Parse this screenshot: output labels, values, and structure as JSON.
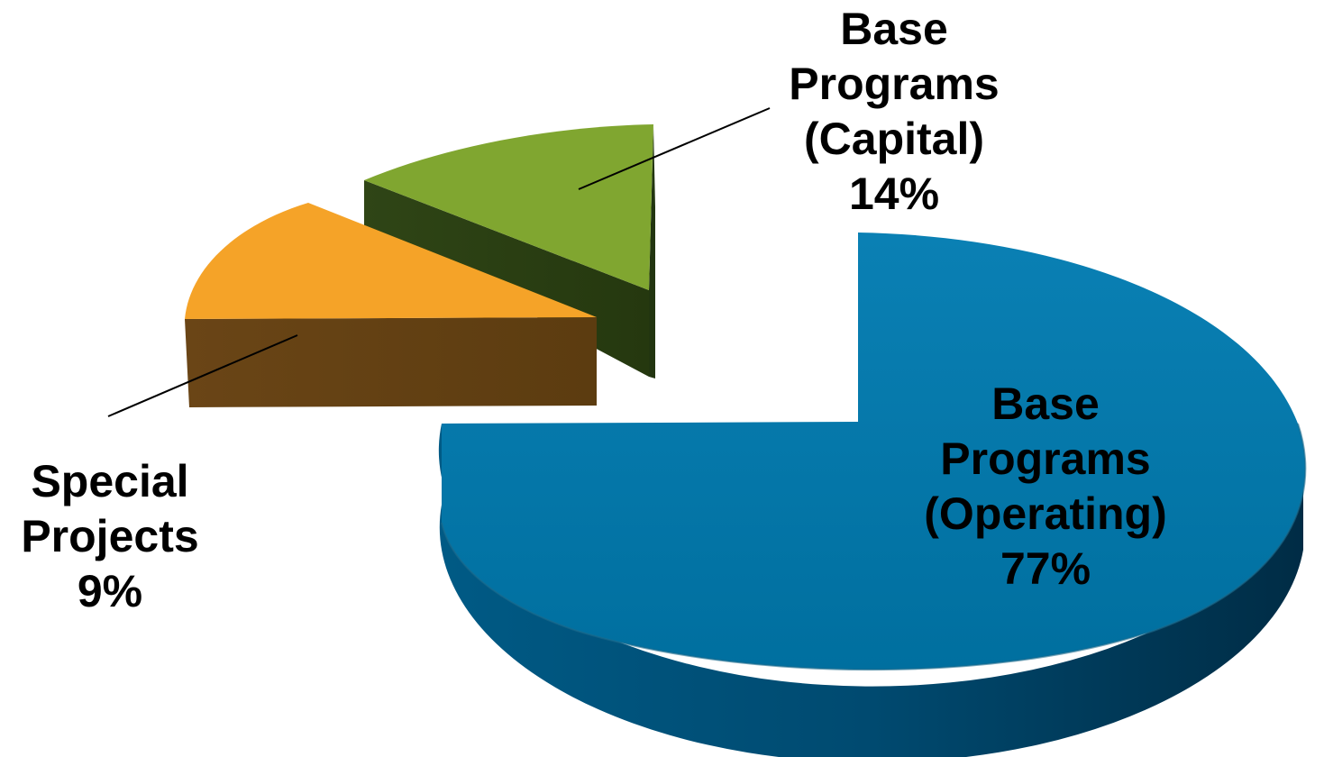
{
  "chart_data": {
    "type": "pie",
    "style": "3d-exploded",
    "slices": [
      {
        "name": "Base Programs (Operating)",
        "lines": [
          "Base",
          "Programs",
          "(Operating)",
          "77%"
        ],
        "value": 77,
        "color": "#0077a8"
      },
      {
        "name": "Special Projects",
        "lines": [
          "Special",
          "Projects",
          "9%"
        ],
        "value": 9,
        "color": "#f5a328"
      },
      {
        "name": "Base Programs (Capital)",
        "lines": [
          "Base",
          "Programs",
          "(Capital)",
          "14%"
        ],
        "value": 14,
        "color": "#80a630"
      }
    ]
  }
}
